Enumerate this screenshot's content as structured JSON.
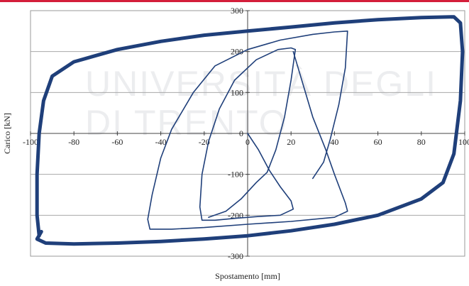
{
  "chart_data": {
    "type": "line",
    "title": "",
    "xlabel": "Spostamento [mm]",
    "ylabel": "Carico [kN]",
    "xlim": [
      -100,
      100
    ],
    "ylim": [
      -300,
      300
    ],
    "x_ticks": [
      -100,
      -80,
      -60,
      -40,
      -20,
      0,
      20,
      40,
      60,
      80,
      100
    ],
    "y_ticks": [
      -300,
      -200,
      -100,
      0,
      100,
      200,
      300
    ],
    "x_tick_labels": [
      "-100",
      "-80",
      "-60",
      "-40",
      "-20",
      "0",
      "20",
      "40",
      "60",
      "80",
      "100"
    ],
    "y_tick_labels": [
      "-300",
      "-200",
      "-100",
      "0",
      "100",
      "200",
      "300"
    ],
    "grid": "horizontal",
    "line_color": "#1f3f7a",
    "series": [
      {
        "name": "",
        "stroke": 1.6,
        "points": [
          [
            0,
            0
          ],
          [
            5,
            -40
          ],
          [
            10,
            -90
          ],
          [
            15,
            -130
          ],
          [
            20,
            -165
          ],
          [
            21,
            -185
          ],
          [
            15,
            -200
          ],
          [
            5,
            -203
          ],
          [
            -5,
            -207
          ],
          [
            -15,
            -212
          ],
          [
            -21,
            -212
          ],
          [
            -22,
            -180
          ],
          [
            -21,
            -100
          ],
          [
            -18,
            -20
          ],
          [
            -13,
            60
          ],
          [
            -6,
            130
          ],
          [
            4,
            180
          ],
          [
            14,
            205
          ],
          [
            20,
            209
          ],
          [
            22,
            205
          ],
          [
            20,
            130
          ],
          [
            17,
            40
          ],
          [
            13,
            -40
          ],
          [
            9,
            -95
          ],
          [
            4,
            -120
          ],
          [
            -3,
            -160
          ],
          [
            -10,
            -190
          ],
          [
            -18,
            -205
          ]
        ]
      },
      {
        "name": "",
        "stroke": 1.6,
        "points": [
          [
            21,
            200
          ],
          [
            30,
            40
          ],
          [
            36,
            -40
          ],
          [
            40,
            -100
          ],
          [
            45,
            -170
          ],
          [
            46,
            -190
          ],
          [
            40,
            -205
          ],
          [
            20,
            -215
          ],
          [
            0,
            -222
          ],
          [
            -20,
            -230
          ],
          [
            -35,
            -234
          ],
          [
            -45,
            -234
          ],
          [
            -46,
            -210
          ],
          [
            -44,
            -150
          ],
          [
            -40,
            -60
          ],
          [
            -35,
            10
          ],
          [
            -25,
            100
          ],
          [
            -15,
            165
          ],
          [
            0,
            205
          ],
          [
            15,
            228
          ],
          [
            30,
            242
          ],
          [
            40,
            248
          ],
          [
            46,
            250
          ],
          [
            45,
            160
          ],
          [
            42,
            70
          ],
          [
            38,
            -15
          ],
          [
            35,
            -70
          ],
          [
            30,
            -110
          ]
        ]
      },
      {
        "name": "",
        "stroke": 5,
        "points": [
          [
            -95,
            -240
          ],
          [
            -97,
            -258
          ],
          [
            -93,
            -268
          ],
          [
            -80,
            -270
          ],
          [
            -60,
            -268
          ],
          [
            -40,
            -264
          ],
          [
            -20,
            -258
          ],
          [
            0,
            -250
          ],
          [
            20,
            -238
          ],
          [
            40,
            -222
          ],
          [
            60,
            -200
          ],
          [
            80,
            -160
          ],
          [
            90,
            -120
          ],
          [
            95,
            -50
          ],
          [
            98,
            80
          ],
          [
            99,
            200
          ],
          [
            98,
            270
          ],
          [
            95,
            285
          ],
          [
            80,
            283
          ],
          [
            60,
            278
          ],
          [
            40,
            270
          ],
          [
            20,
            260
          ],
          [
            0,
            250
          ],
          [
            -20,
            240
          ],
          [
            -40,
            225
          ],
          [
            -60,
            205
          ],
          [
            -80,
            175
          ],
          [
            -90,
            140
          ],
          [
            -94,
            80
          ],
          [
            -96,
            0
          ],
          [
            -97,
            -100
          ],
          [
            -97,
            -200
          ],
          [
            -96,
            -250
          ]
        ]
      }
    ]
  },
  "watermark": {
    "line1": "UNIVERSITÀ DEGLI",
    "line2": "DI TRENTO"
  }
}
